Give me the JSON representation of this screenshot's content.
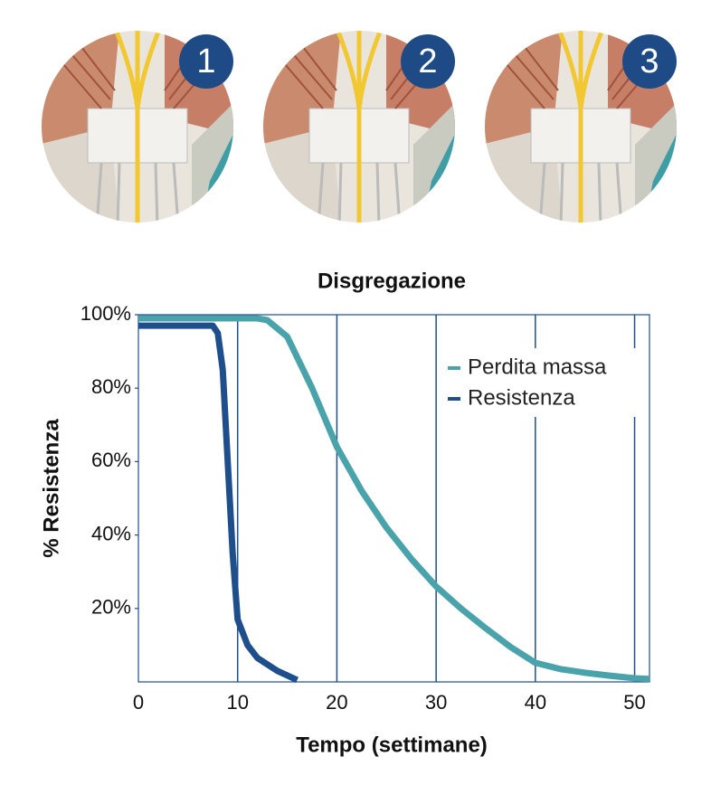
{
  "illustrations": [
    {
      "label": "1"
    },
    {
      "label": "2"
    },
    {
      "label": "3"
    }
  ],
  "chart_data": {
    "type": "line",
    "title": "Disgregazione",
    "x_label": "Tempo (settimane)",
    "y_label": "% Resistenza",
    "xlim": [
      0,
      51.5
    ],
    "ylim": [
      0,
      100
    ],
    "xticks": [
      0,
      10,
      20,
      30,
      40,
      50
    ],
    "yticks": [
      {
        "value": 20,
        "label": "20%"
      },
      {
        "value": 40,
        "label": "40%"
      },
      {
        "value": 60,
        "label": "60%"
      },
      {
        "value": 80,
        "label": "80%"
      },
      {
        "value": 100,
        "label": "100%"
      }
    ],
    "grid": true,
    "legend": "upper right",
    "series": [
      {
        "name": "Perdita massa",
        "color": "#4aa3ab",
        "x": [
          0,
          5,
          10,
          12,
          13,
          15,
          17.5,
          20,
          22.5,
          25,
          27.5,
          30,
          32.5,
          35,
          37.5,
          40,
          42.5,
          45,
          47.5,
          50,
          51.5
        ],
        "values": [
          99,
          99,
          99,
          99,
          98.5,
          94,
          80,
          64,
          52,
          42,
          33.5,
          26,
          20,
          14.6,
          9.5,
          5.2,
          3.5,
          2.5,
          1.7,
          1,
          0.8
        ]
      },
      {
        "name": "Resistenza",
        "color": "#1f4e8c",
        "x": [
          0,
          5,
          7.5,
          8,
          8.5,
          9,
          9.5,
          10,
          11,
          12,
          14,
          16
        ],
        "values": [
          97,
          97,
          97,
          95,
          85,
          60,
          35,
          17,
          10,
          6.5,
          3,
          0.5
        ]
      }
    ]
  }
}
